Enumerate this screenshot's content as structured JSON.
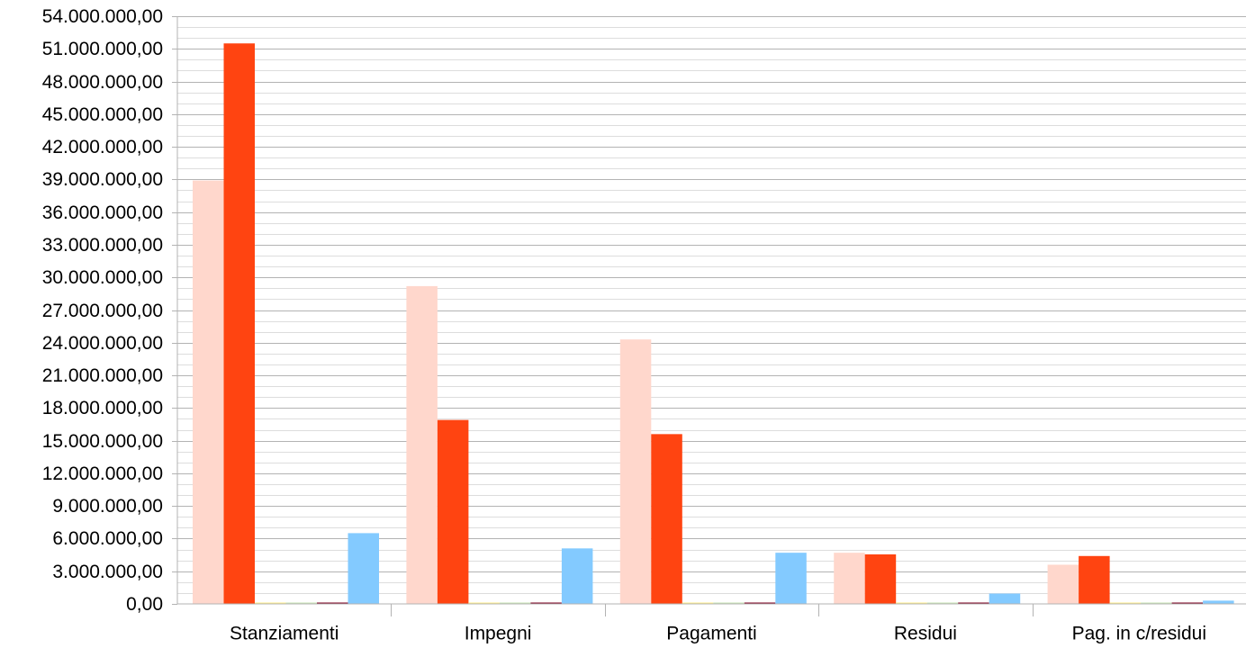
{
  "chart_data": {
    "type": "bar",
    "title": "",
    "xlabel": "",
    "ylabel": "",
    "categories": [
      "Stanziamenti",
      "Impegni",
      "Pagamenti",
      "Residui",
      "Pag. in c/residui"
    ],
    "ylim": [
      0,
      54000000
    ],
    "ytick_step": 3000000,
    "yticks": [
      "0,00",
      "3.000.000,00",
      "6.000.000,00",
      "9.000.000,00",
      "12.000.000,00",
      "15.000.000,00",
      "18.000.000,00",
      "21.000.000,00",
      "24.000.000,00",
      "27.000.000,00",
      "30.000.000,00",
      "33.000.000,00",
      "36.000.000,00",
      "39.000.000,00",
      "42.000.000,00",
      "45.000.000,00",
      "48.000.000,00",
      "51.000.000,00",
      "54.000.000,00"
    ],
    "grid": "horizontal",
    "minor_grid_step": 1000000,
    "legend": "none",
    "series": [
      {
        "color": "#ffd7cc",
        "values": [
          38900000,
          29200000,
          24300000,
          4700000,
          3600000
        ]
      },
      {
        "color": "#ff4411",
        "values": [
          51500000,
          16900000,
          15600000,
          4550000,
          4400000
        ]
      },
      {
        "color": "#ffee88",
        "values": [
          100000,
          100000,
          100000,
          80000,
          80000
        ]
      },
      {
        "color": "#c9e4b4",
        "values": [
          60000,
          60000,
          60000,
          50000,
          50000
        ]
      },
      {
        "color": "#7e0021",
        "values": [
          80000,
          80000,
          80000,
          60000,
          60000
        ]
      },
      {
        "color": "#83caff",
        "values": [
          6500000,
          5100000,
          4700000,
          950000,
          300000
        ]
      }
    ]
  }
}
